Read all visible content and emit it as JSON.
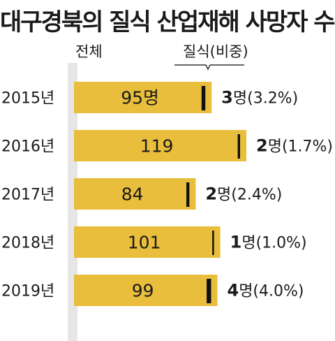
{
  "title": "대구경북의 질식 산업재해 사망자 수",
  "header": {
    "total_label": "전체",
    "sub_label": "질식(비중)"
  },
  "colors": {
    "bar": "#e8be3c",
    "marker": "#111111",
    "track": "#e6e6e6"
  },
  "chart_data": {
    "type": "bar",
    "orientation": "horizontal",
    "categories": [
      "2015년",
      "2016년",
      "2017년",
      "2018년",
      "2019년"
    ],
    "series": [
      {
        "name": "전체",
        "values": [
          95,
          119,
          84,
          101,
          99
        ],
        "labels": [
          "95명",
          "119",
          "84",
          "101",
          "99"
        ]
      },
      {
        "name": "질식(비중)",
        "values": [
          3,
          2,
          2,
          1,
          4
        ],
        "share_percent": [
          3.2,
          1.7,
          2.4,
          1.0,
          4.0
        ],
        "labels": [
          "3명(3.2%)",
          "2명(1.7%)",
          "2명(2.4%)",
          "1명(1.0%)",
          "4명(4.0%)"
        ]
      }
    ],
    "xlim": [
      0,
      119
    ],
    "grid": false,
    "legend": "none"
  }
}
